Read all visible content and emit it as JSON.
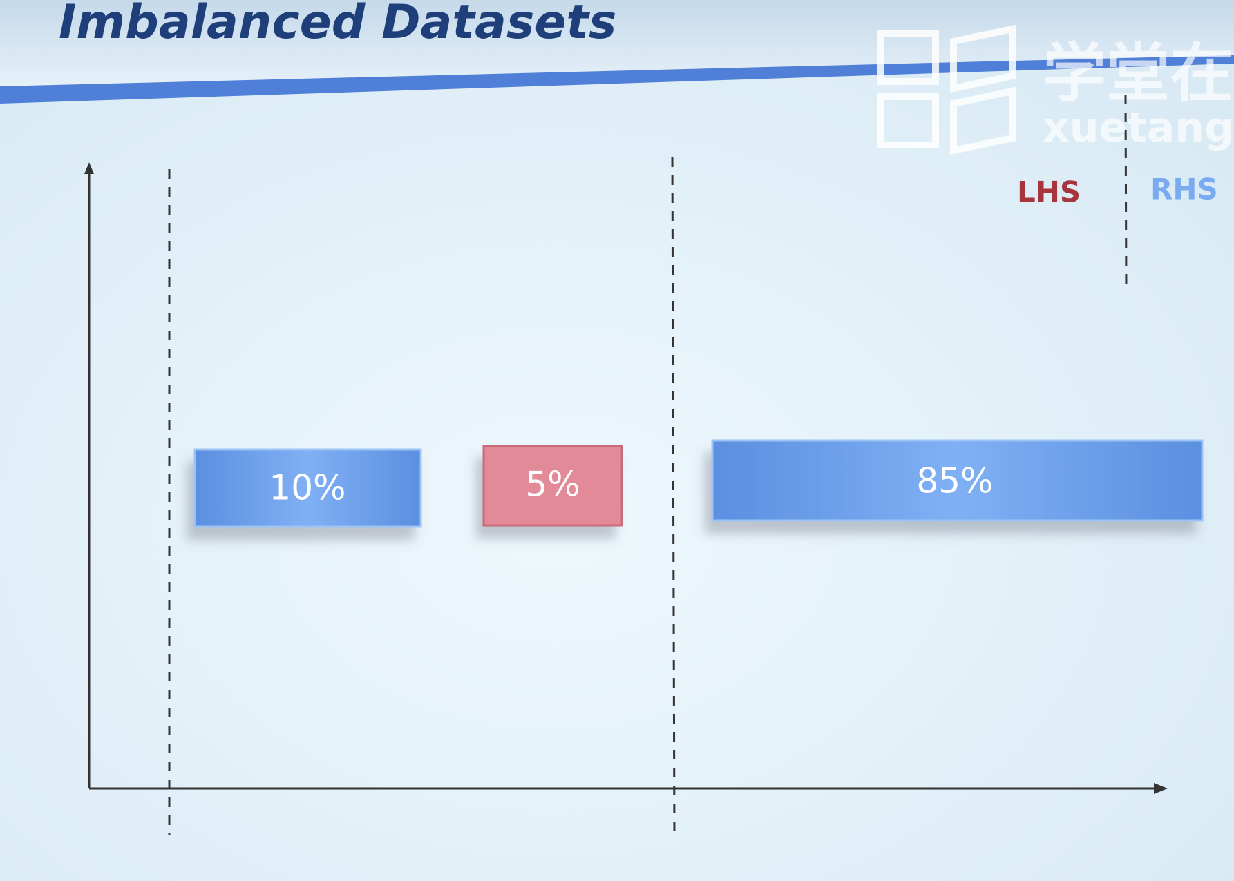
{
  "header": {
    "title": "Imbalanced Datasets"
  },
  "watermark": {
    "name": "学堂在线",
    "domain": "xuetangx"
  },
  "legend": {
    "left": "LHS",
    "right": "RHS"
  },
  "boxes": [
    {
      "label": "10%"
    },
    {
      "label": "5%"
    },
    {
      "label": "85%"
    }
  ]
}
